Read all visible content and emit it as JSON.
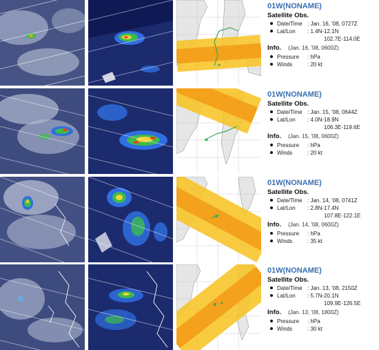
{
  "rows": [
    {
      "title": "01W(NONAME)",
      "sat_header": "Satellite Obs.",
      "datetime_label": "Date/Time",
      "datetime": ": Jan. 16, '08, 0727Z",
      "latlon_label": "Lat/Lon",
      "lat": ": 1.4N-12.1N",
      "lon": "102.7E-114.0E",
      "info_header": "Info.",
      "info_time": "(Jan. 16, '08, 0600Z)",
      "pressure_label": "Pressure",
      "pressure": ": hPa",
      "winds_label": "Winds",
      "winds": ": 20 kt"
    },
    {
      "title": "01W(NONAME)",
      "sat_header": "Satellite Obs.",
      "datetime_label": "Date/Time",
      "datetime": ": Jan. 15, '08, 0644Z",
      "latlon_label": "Lat/Lon",
      "lat": ": 4.0N-18.9N",
      "lon": "106.3E-119.6E",
      "info_header": "Info.",
      "info_time": "(Jan. 15, '08, 0600Z)",
      "pressure_label": "Pressure",
      "pressure": ": hPa",
      "winds_label": "Winds",
      "winds": ": 20 kt"
    },
    {
      "title": "01W(NONAME)",
      "sat_header": "Satellite Obs.",
      "datetime_label": "Date/Time",
      "datetime": ": Jan. 14, '08, 0741Z",
      "latlon_label": "Lat/Lon",
      "lat": ": 2.8N-17.4N",
      "lon": "107.8E-122.1E",
      "info_header": "Info.",
      "info_time": "(Jan. 14, '08, 0600Z)",
      "pressure_label": "Pressure",
      "pressure": ": hPa",
      "winds_label": "Winds",
      "winds": ": 35 kt"
    },
    {
      "title": "01W(NONAME)",
      "sat_header": "Satellite Obs.",
      "datetime_label": "Date/Time",
      "datetime": ": Jan. 13, '08, 2150Z",
      "latlon_label": "Lat/Lon",
      "lat": ": 5.7N-20.1N",
      "lon": "109.9E-126.5E",
      "info_header": "Info.",
      "info_time": "(Jan. 13, '08, 1800Z)",
      "pressure_label": "Pressure",
      "pressure": ": hPa",
      "winds_label": "Winds",
      "winds": ": 30 kt"
    }
  ],
  "colors": {
    "title": "#3a6fb0",
    "satellite_bg": "#1c2a6e",
    "swath_outer": "#f7c21e",
    "swath_inner": "#f39a16",
    "track": "#3aa75a"
  },
  "panel_kinds": [
    "infrared-cloud-image",
    "microwave-rain-image",
    "swath-coverage-map"
  ]
}
